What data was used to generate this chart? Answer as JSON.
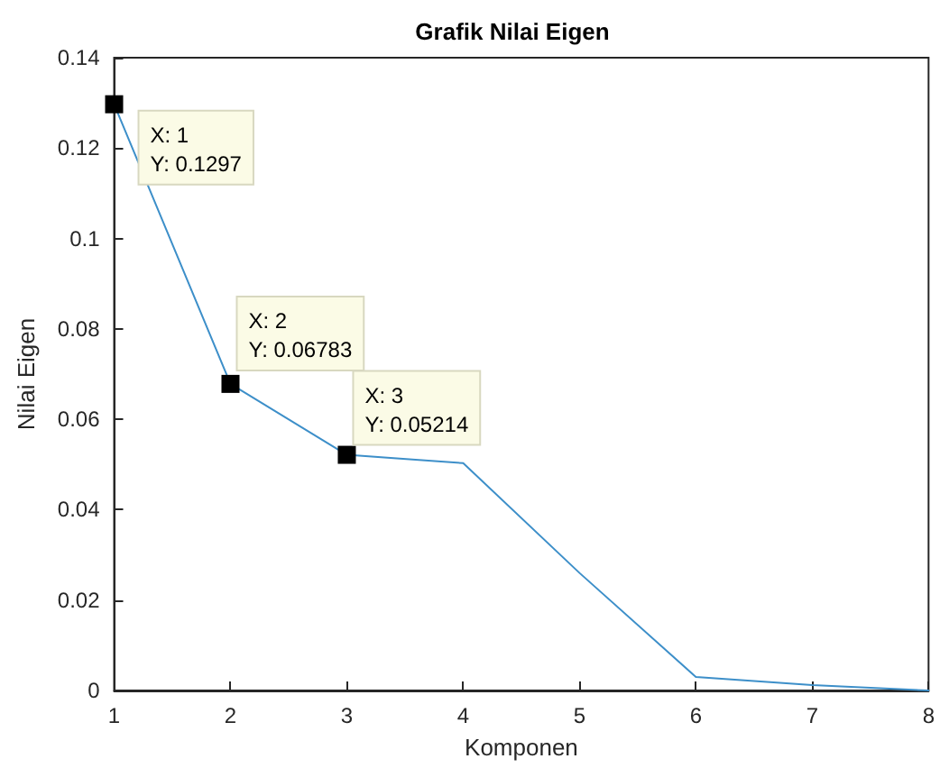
{
  "chart_data": {
    "type": "line",
    "title": "Grafik Nilai Eigen",
    "xlabel": "Komponen",
    "ylabel": "Nilai Eigen",
    "x": [
      1,
      2,
      3,
      4,
      5,
      6,
      7,
      8
    ],
    "series": [
      {
        "color": "#3d8fc9",
        "values": [
          0.1297,
          0.06783,
          0.05214,
          0.0503,
          0.026,
          0.003,
          0.0012,
          0
        ]
      }
    ],
    "xlim": [
      1,
      8
    ],
    "xticks": [
      1,
      2,
      3,
      4,
      5,
      6,
      7,
      8
    ],
    "ylim": [
      0,
      0.14
    ],
    "yticks": [
      0,
      0.02,
      0.04,
      0.06,
      0.08,
      0.1,
      0.12,
      0.14
    ],
    "grid": false,
    "marker": "none",
    "line_style": "solid",
    "annotations": [
      {
        "text": "X: 1\nY: 0.1297",
        "x": 1,
        "y": 0.1297
      },
      {
        "text": "X: 2\nY: 0.06783",
        "x": 2,
        "y": 0.06783
      },
      {
        "text": "X: 3\nY: 0.05214",
        "x": 3,
        "y": 0.05214
      }
    ]
  }
}
